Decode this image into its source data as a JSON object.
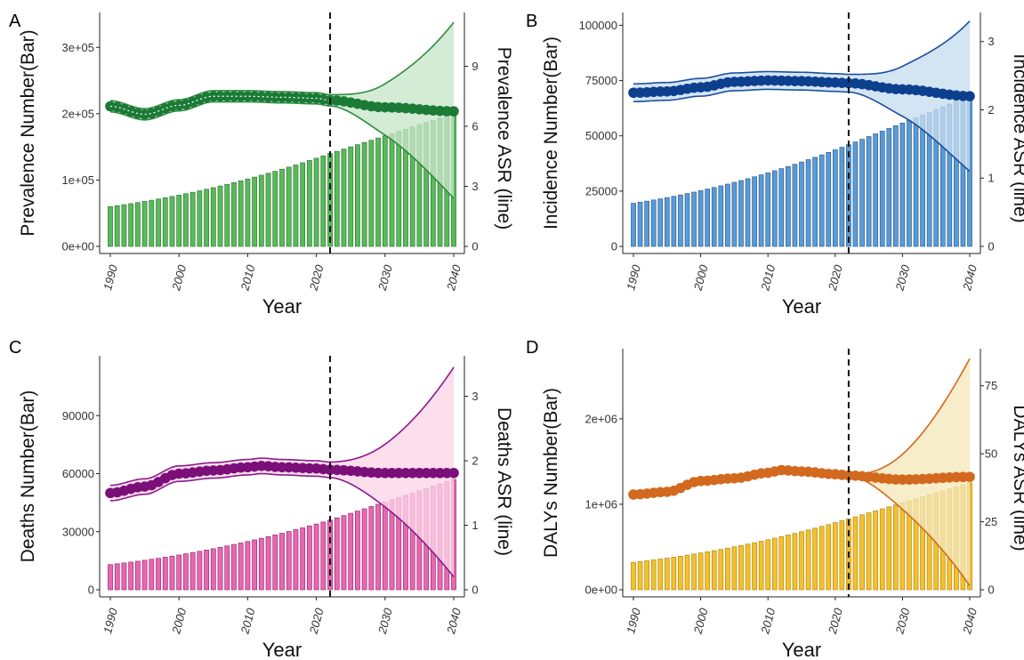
{
  "chart_data": [
    {
      "panel_label": "A",
      "type": "bar+line",
      "ylabel": "Prevalence Number(Bar)",
      "y2label": "Prevalence ASR (line)",
      "xlabel": "Year",
      "xlim": [
        1990,
        2040
      ],
      "ylim": [
        0,
        350000
      ],
      "y2lim": [
        0,
        11.6
      ],
      "x_ticks": [
        "1990",
        "2000",
        "2010",
        "2020",
        "2030",
        "2040"
      ],
      "y_ticks": [
        {
          "v": 0,
          "t": "0e+00"
        },
        {
          "v": 100000,
          "t": "1e+05"
        },
        {
          "v": 200000,
          "t": "2e+05"
        },
        {
          "v": 300000,
          "t": "3e+05"
        }
      ],
      "y2_ticks": [
        {
          "v": 0,
          "t": "0"
        },
        {
          "v": 3,
          "t": "3"
        },
        {
          "v": 6,
          "t": "6"
        },
        {
          "v": 9,
          "t": "9"
        }
      ],
      "forecast_start": 2022,
      "bars": {
        "start": 60000,
        "mid": 140000,
        "end": 200000
      },
      "asr_line": {
        "anchors": [
          [
            1990,
            7.0
          ],
          [
            1995,
            6.6
          ],
          [
            2000,
            7.05
          ],
          [
            2005,
            7.5
          ],
          [
            2010,
            7.5
          ],
          [
            2015,
            7.45
          ],
          [
            2020,
            7.4
          ],
          [
            2022,
            7.3
          ],
          [
            2030,
            6.95
          ],
          [
            2040,
            6.75
          ]
        ]
      },
      "band": {
        "upper_end": 11.2,
        "lower_end": 2.4,
        "hist_width": 0.28
      },
      "colors": {
        "bar": "#5cb85c",
        "bar_edge": "#2e7d32",
        "line": "#1b7a36",
        "band": "#c8e6c9",
        "edge": "#2e8b3e"
      },
      "dotted_center": true
    },
    {
      "panel_label": "B",
      "type": "bar+line",
      "ylabel": "Incidence Number(Bar)",
      "y2label": "Incidence ASR (line)",
      "xlabel": "Year",
      "xlim": [
        1990,
        2040
      ],
      "ylim": [
        0,
        105000
      ],
      "y2lim": [
        0,
        3.4
      ],
      "x_ticks": [
        "1990",
        "2000",
        "2010",
        "2020",
        "2030",
        "2040"
      ],
      "y_ticks": [
        {
          "v": 0,
          "t": "0"
        },
        {
          "v": 25000,
          "t": "25000"
        },
        {
          "v": 50000,
          "t": "50000"
        },
        {
          "v": 75000,
          "t": "75000"
        },
        {
          "v": 100000,
          "t": "100000"
        }
      ],
      "y2_ticks": [
        {
          "v": 0,
          "t": "0"
        },
        {
          "v": 1,
          "t": "1"
        },
        {
          "v": 2,
          "t": "2"
        },
        {
          "v": 3,
          "t": "3"
        }
      ],
      "forecast_start": 2022,
      "bars": {
        "start": 19500,
        "mid": 46000,
        "end": 68000
      },
      "asr_line": {
        "anchors": [
          [
            1990,
            2.25
          ],
          [
            1995,
            2.27
          ],
          [
            2000,
            2.33
          ],
          [
            2005,
            2.41
          ],
          [
            2010,
            2.43
          ],
          [
            2015,
            2.42
          ],
          [
            2020,
            2.4
          ],
          [
            2022,
            2.39
          ],
          [
            2030,
            2.3
          ],
          [
            2040,
            2.2
          ]
        ]
      },
      "band": {
        "upper_end": 3.3,
        "lower_end": 1.1,
        "hist_width": 0.13
      },
      "colors": {
        "bar": "#5b9bd5",
        "bar_edge": "#2c5f96",
        "line": "#0d3f8f",
        "band": "#c6dcf0",
        "edge": "#1a4f9c"
      },
      "dotted_center": false
    },
    {
      "panel_label": "C",
      "type": "bar+line",
      "ylabel": "Deaths Number(Bar)",
      "y2label": "Deaths ASR (line)",
      "xlabel": "Year",
      "xlim": [
        1990,
        2040
      ],
      "ylim": [
        0,
        120000
      ],
      "y2lim": [
        0,
        3.6
      ],
      "x_ticks": [
        "1990",
        "2000",
        "2010",
        "2020",
        "2030",
        "2040"
      ],
      "y_ticks": [
        {
          "v": 0,
          "t": "0"
        },
        {
          "v": 30000,
          "t": "30000"
        },
        {
          "v": 60000,
          "t": "60000"
        },
        {
          "v": 90000,
          "t": "90000"
        }
      ],
      "y2_ticks": [
        {
          "v": 0,
          "t": "0"
        },
        {
          "v": 1,
          "t": "1"
        },
        {
          "v": 2,
          "t": "2"
        },
        {
          "v": 3,
          "t": "3"
        }
      ],
      "forecast_start": 2022,
      "bars": {
        "start": 13000,
        "mid": 36000,
        "end": 57000
      },
      "asr_line": {
        "anchors": [
          [
            1990,
            1.5
          ],
          [
            1995,
            1.6
          ],
          [
            2000,
            1.8
          ],
          [
            2005,
            1.85
          ],
          [
            2010,
            1.9
          ],
          [
            2012,
            1.92
          ],
          [
            2015,
            1.9
          ],
          [
            2020,
            1.88
          ],
          [
            2022,
            1.86
          ],
          [
            2030,
            1.81
          ],
          [
            2040,
            1.81
          ]
        ]
      },
      "band": {
        "upper_end": 3.45,
        "lower_end": 0.2,
        "hist_width": 0.12
      },
      "colors": {
        "bar": "#e868b0",
        "bar_edge": "#9c2a73",
        "line": "#7a0f7a",
        "band": "#fcd5e8",
        "edge": "#8b1a8b"
      },
      "dotted_center": false
    },
    {
      "panel_label": "D",
      "type": "bar+line",
      "ylabel": "DALYs Number(Bar)",
      "y2label": "DALYs ASR (line)",
      "xlabel": "Year",
      "xlim": [
        1990,
        2040
      ],
      "ylim": [
        0,
        2800000
      ],
      "y2lim": [
        0,
        88
      ],
      "x_ticks": [
        "1990",
        "2000",
        "2010",
        "2020",
        "2030",
        "2040"
      ],
      "y_ticks": [
        {
          "v": 0,
          "t": "0e+00"
        },
        {
          "v": 1000000,
          "t": "1e+06"
        },
        {
          "v": 2000000,
          "t": "2e+06"
        }
      ],
      "y2_ticks": [
        {
          "v": 0,
          "t": "0"
        },
        {
          "v": 25,
          "t": "25"
        },
        {
          "v": 50,
          "t": "50"
        },
        {
          "v": 75,
          "t": "75"
        }
      ],
      "forecast_start": 2022,
      "bars": {
        "start": 320000,
        "mid": 830000,
        "end": 1250000
      },
      "asr_line": {
        "anchors": [
          [
            1990,
            35
          ],
          [
            1995,
            36
          ],
          [
            2000,
            40
          ],
          [
            2005,
            41
          ],
          [
            2010,
            43
          ],
          [
            2012,
            44
          ],
          [
            2015,
            43.5
          ],
          [
            2020,
            42.5
          ],
          [
            2022,
            42
          ],
          [
            2030,
            40.5
          ],
          [
            2040,
            41.5
          ]
        ]
      },
      "band": {
        "upper_end": 85,
        "lower_end": 1.5,
        "hist_width": 0
      },
      "colors": {
        "bar": "#f2c12e",
        "bar_edge": "#b8860b",
        "line": "#d2691e",
        "band": "#f5e8b8",
        "edge": "#d2691e"
      },
      "dotted_center": false
    }
  ]
}
